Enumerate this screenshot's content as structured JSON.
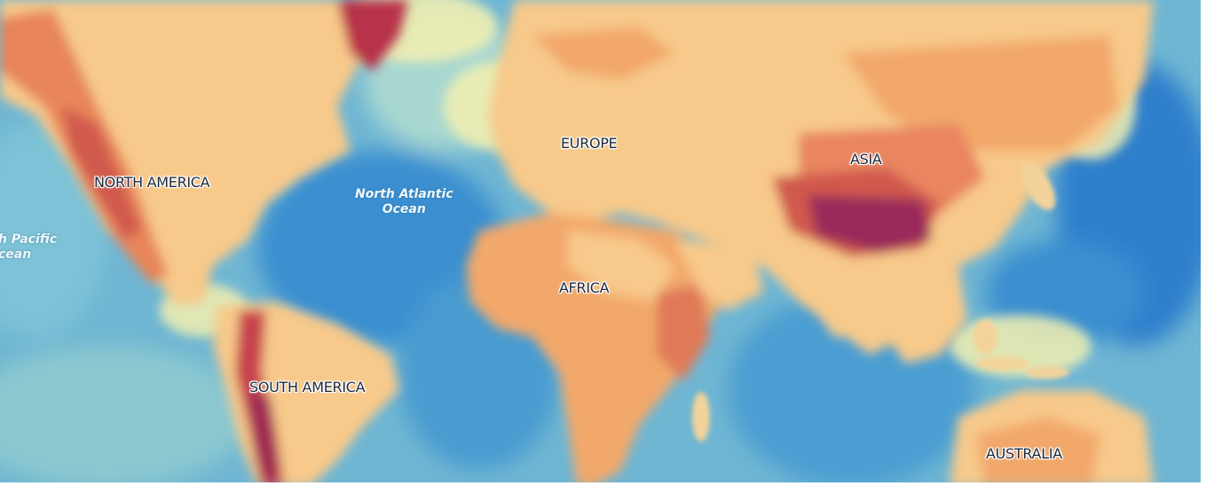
{
  "map": {
    "continents": {
      "north_america": "NORTH AMERICA",
      "south_america": "SOUTH AMERICA",
      "europe": "EUROPE",
      "africa": "AFRICA",
      "asia": "ASIA",
      "australia": "AUSTRALIA"
    },
    "oceans": {
      "north_atlantic_line1": "North Atlantic",
      "north_atlantic_line2": "Ocean",
      "north_pacific_line1": "h Pacific",
      "north_pacific_line2": "cean"
    },
    "colors": {
      "deep_ocean": "#3a8fd0",
      "ocean": "#6fb6d3",
      "shallow": "#a8d8d0",
      "coast": "#f3f0b0",
      "land_low": "#f7c98a",
      "land_mid": "#f2a86a",
      "land_high": "#e06f52",
      "peak": "#9a2a5a"
    }
  }
}
